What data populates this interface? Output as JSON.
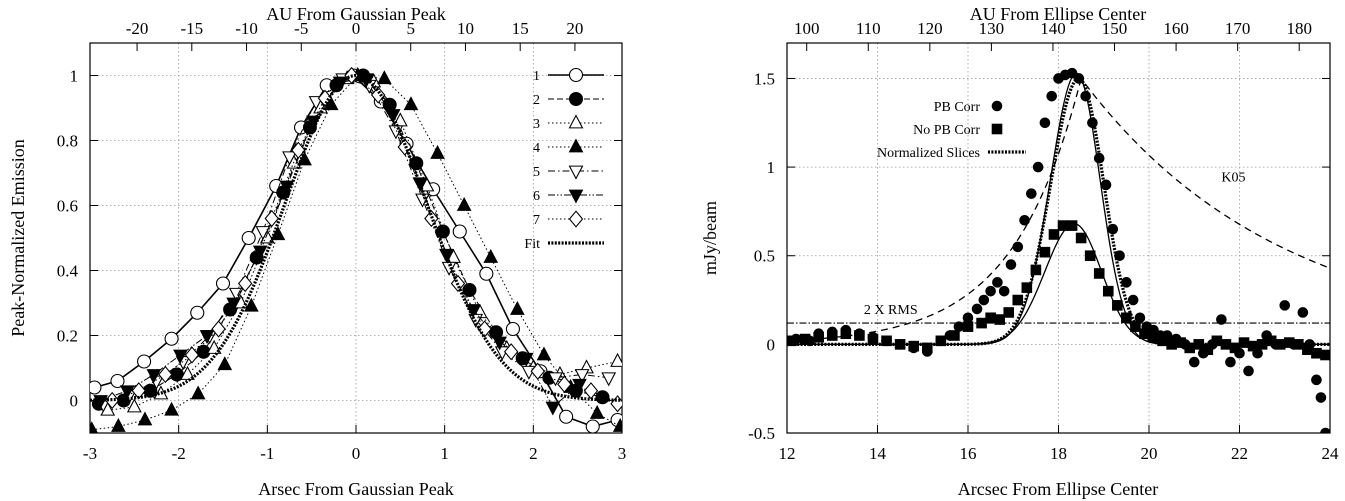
{
  "chart_data": [
    {
      "type": "line",
      "xlabel": "Arsec From Gaussian Peak",
      "ylabel": "Peak-Normalized Emission",
      "x2label": "AU From Gaussian Peak",
      "xlim": [
        -3,
        3
      ],
      "ylim": [
        -0.1,
        1.1
      ],
      "x2lim": [
        -24.3,
        24.3
      ],
      "xticks": [
        -3,
        -2,
        -1,
        0,
        1,
        2,
        3
      ],
      "xtick_labels": [
        "-3",
        "-2",
        "-1",
        "0",
        "1",
        "2",
        "3"
      ],
      "yticks": [
        0,
        0.2,
        0.4,
        0.6,
        0.8,
        1
      ],
      "ytick_labels": [
        "0",
        "0.2",
        "0.4",
        "0.6",
        "0.8",
        "1"
      ],
      "x2ticks": [
        -20,
        -15,
        -10,
        -5,
        0,
        5,
        10,
        15,
        20
      ],
      "x2tick_labels": [
        "-20",
        "-15",
        "-10",
        "-5",
        "0",
        "5",
        "10",
        "15",
        "20"
      ],
      "grid": true,
      "legend_position": "top-right",
      "series": [
        {
          "name": "1",
          "marker": "circle-open",
          "line": "solid",
          "lw": 1.6,
          "x": [
            -2.95,
            -2.69,
            -2.39,
            -2.08,
            -1.79,
            -1.5,
            -1.21,
            -0.9,
            -0.62,
            -0.33,
            -0.03,
            0.28,
            0.57,
            0.87,
            1.17,
            1.47,
            1.77,
            2.08,
            2.37,
            2.67,
            2.95
          ],
          "y": [
            0.04,
            0.06,
            0.12,
            0.19,
            0.27,
            0.36,
            0.5,
            0.66,
            0.84,
            0.97,
            1.0,
            0.92,
            0.79,
            0.65,
            0.52,
            0.39,
            0.22,
            0.09,
            -0.05,
            -0.08,
            -0.06
          ]
        },
        {
          "name": "2",
          "marker": "circle-filled",
          "line": "dashed",
          "lw": 1,
          "x": [
            -2.9,
            -2.62,
            -2.32,
            -2.02,
            -1.72,
            -1.42,
            -1.12,
            -0.82,
            -0.52,
            -0.22,
            0.08,
            0.38,
            0.68,
            0.98,
            1.28,
            1.58,
            1.88,
            2.18,
            2.48,
            2.78
          ],
          "y": [
            -0.01,
            0.0,
            0.03,
            0.08,
            0.15,
            0.28,
            0.44,
            0.64,
            0.84,
            0.97,
            1.0,
            0.91,
            0.73,
            0.52,
            0.34,
            0.21,
            0.13,
            0.07,
            0.03,
            0.01
          ]
        },
        {
          "name": "3",
          "marker": "triangle-up-open",
          "line": "dotted",
          "lw": 1,
          "x": [
            -2.8,
            -2.5,
            -2.2,
            -1.9,
            -1.6,
            -1.3,
            -1.0,
            -0.7,
            -0.4,
            -0.1,
            0.2,
            0.5,
            0.8,
            1.1,
            1.4,
            1.7,
            2.0,
            2.3,
            2.6,
            2.95
          ],
          "y": [
            -0.03,
            -0.02,
            0.02,
            0.08,
            0.16,
            0.3,
            0.5,
            0.73,
            0.9,
            0.99,
            0.98,
            0.86,
            0.66,
            0.44,
            0.27,
            0.16,
            0.1,
            0.08,
            0.1,
            0.12
          ]
        },
        {
          "name": "4",
          "marker": "triangle-up-filled",
          "line": "dotted",
          "lw": 1,
          "x": [
            -2.98,
            -2.68,
            -2.38,
            -2.08,
            -1.78,
            -1.48,
            -1.18,
            -0.88,
            -0.58,
            -0.28,
            0.02,
            0.32,
            0.62,
            0.92,
            1.22,
            1.52,
            1.82,
            2.12,
            2.42,
            2.72,
            2.98
          ],
          "y": [
            -0.09,
            -0.08,
            -0.06,
            -0.03,
            0.02,
            0.11,
            0.29,
            0.51,
            0.74,
            0.91,
            1.0,
            0.99,
            0.91,
            0.76,
            0.6,
            0.44,
            0.28,
            0.14,
            0.04,
            -0.04,
            -0.08
          ]
        },
        {
          "name": "5",
          "marker": "triangle-down-open",
          "line": "dashdot",
          "lw": 1,
          "x": [
            -2.85,
            -2.55,
            -2.25,
            -1.95,
            -1.65,
            -1.35,
            -1.05,
            -0.75,
            -0.45,
            -0.15,
            0.15,
            0.45,
            0.75,
            1.05,
            1.35,
            1.65,
            1.95,
            2.25,
            2.55,
            2.85
          ],
          "y": [
            -0.01,
            0.02,
            0.06,
            0.12,
            0.2,
            0.33,
            0.52,
            0.75,
            0.92,
            0.99,
            0.97,
            0.83,
            0.62,
            0.41,
            0.25,
            0.15,
            0.09,
            0.07,
            0.08,
            0.07
          ]
        },
        {
          "name": "6",
          "marker": "triangle-down-filled",
          "line": "dashdotdot",
          "lw": 1,
          "x": [
            -2.88,
            -2.58,
            -2.28,
            -1.98,
            -1.68,
            -1.38,
            -1.08,
            -0.78,
            -0.48,
            -0.18,
            0.12,
            0.42,
            0.72,
            1.02,
            1.32,
            1.62,
            1.92,
            2.22,
            2.52
          ],
          "y": [
            0.0,
            0.03,
            0.08,
            0.14,
            0.2,
            0.3,
            0.46,
            0.66,
            0.86,
            0.98,
            0.99,
            0.88,
            0.67,
            0.45,
            0.28,
            0.18,
            0.13,
            -0.02,
            0.05
          ]
        },
        {
          "name": "7",
          "marker": "diamond-open",
          "line": "dotted",
          "lw": 1,
          "x": [
            -2.75,
            -2.45,
            -2.15,
            -1.85,
            -1.55,
            -1.25,
            -0.95,
            -0.65,
            -0.35,
            -0.05,
            0.25,
            0.55,
            0.85,
            1.15,
            1.45,
            1.75,
            2.05,
            2.35,
            2.65,
            2.95
          ],
          "y": [
            0.0,
            0.03,
            0.08,
            0.14,
            0.22,
            0.36,
            0.56,
            0.77,
            0.93,
            1.0,
            0.94,
            0.78,
            0.56,
            0.36,
            0.22,
            0.15,
            0.09,
            0.05,
            0.03,
            -0.01
          ]
        },
        {
          "name": "Fit",
          "marker": "none",
          "line": "fit",
          "lw": 3.2,
          "fit": {
            "sigma": 0.8
          },
          "x_range": [
            -3,
            3
          ]
        }
      ]
    },
    {
      "type": "scatter",
      "xlabel": "Arcsec From Ellipse Center",
      "ylabel": "mJy/beam",
      "x2label": "AU From Ellipse Center",
      "xlim": [
        12,
        24
      ],
      "ylim": [
        -0.5,
        1.7
      ],
      "x2lim": [
        96.8,
        185
      ],
      "xticks": [
        12,
        14,
        16,
        18,
        20,
        22,
        24
      ],
      "xtick_labels": [
        "12",
        "14",
        "16",
        "18",
        "20",
        "22",
        "24"
      ],
      "yticks": [
        -0.5,
        0,
        0.5,
        1,
        1.5
      ],
      "ytick_labels": [
        "-0.5",
        "0",
        "0.5",
        "1",
        "1.5"
      ],
      "x2ticks": [
        100,
        110,
        120,
        130,
        140,
        150,
        160,
        170,
        180
      ],
      "x2tick_labels": [
        "100",
        "110",
        "120",
        "130",
        "140",
        "150",
        "160",
        "170",
        "180"
      ],
      "grid": true,
      "legend_position": "top-left",
      "annotations": [
        {
          "text": "K05",
          "x": 21.6,
          "y": 0.92
        },
        {
          "text": "2 X RMS",
          "x": 13.7,
          "y": 0.17
        }
      ],
      "reference_lines": [
        {
          "name": "2 X RMS",
          "y": 0.12
        }
      ],
      "series": [
        {
          "name": "PB Corr",
          "marker": "circle-filled",
          "x": [
            12.2,
            12.5,
            12.7,
            13.0,
            13.3,
            13.6,
            13.9,
            14.2,
            14.5,
            14.8,
            15.1,
            15.4,
            15.6,
            15.8,
            16.0,
            16.2,
            16.35,
            16.5,
            16.65,
            16.8,
            16.95,
            17.1,
            17.25,
            17.4,
            17.55,
            17.7,
            17.85,
            18.0,
            18.15,
            18.3,
            18.45,
            18.6,
            18.75,
            18.9,
            19.05,
            19.2,
            19.35,
            19.5,
            19.65,
            19.8,
            19.95,
            20.1,
            20.25,
            20.4,
            20.6,
            20.8,
            21.0,
            21.2,
            21.4,
            21.6,
            21.8,
            22.0,
            22.2,
            22.4,
            22.6,
            22.8,
            23.0,
            23.2,
            23.4,
            23.55,
            23.7,
            23.8,
            23.9
          ],
          "y": [
            0.03,
            0.02,
            0.06,
            0.07,
            0.08,
            0.06,
            0.04,
            0.02,
            0.0,
            -0.02,
            -0.04,
            0.02,
            0.05,
            0.1,
            0.15,
            0.2,
            0.25,
            0.3,
            0.35,
            0.3,
            0.45,
            0.55,
            0.7,
            0.85,
            1.0,
            1.25,
            1.4,
            1.5,
            1.52,
            1.53,
            1.5,
            1.4,
            1.25,
            1.05,
            0.9,
            0.65,
            0.5,
            0.35,
            0.25,
            0.15,
            0.1,
            0.08,
            0.05,
            0.05,
            0.03,
            0.0,
            -0.1,
            -0.05,
            0.0,
            0.14,
            -0.1,
            -0.05,
            -0.15,
            -0.05,
            0.05,
            0.0,
            0.22,
            0.0,
            0.18,
            0.0,
            -0.2,
            -0.3,
            -0.5
          ]
        },
        {
          "name": "No PB Corr",
          "marker": "square-filled",
          "x": [
            12.1,
            12.4,
            12.7,
            13.0,
            13.3,
            13.6,
            13.9,
            14.2,
            14.5,
            14.8,
            15.1,
            15.4,
            15.7,
            16.0,
            16.3,
            16.5,
            16.7,
            16.9,
            17.1,
            17.3,
            17.5,
            17.7,
            17.9,
            18.1,
            18.3,
            18.5,
            18.7,
            18.9,
            19.1,
            19.3,
            19.5,
            19.7,
            19.9,
            20.1,
            20.3,
            20.5,
            20.7,
            20.9,
            21.1,
            21.3,
            21.5,
            21.7,
            21.9,
            22.1,
            22.3,
            22.5,
            22.7,
            22.9,
            23.1,
            23.3,
            23.5,
            23.7,
            23.9
          ],
          "y": [
            0.02,
            0.03,
            0.04,
            0.05,
            0.06,
            0.05,
            0.03,
            0.02,
            0.0,
            -0.01,
            -0.02,
            0.02,
            0.05,
            0.1,
            0.12,
            0.15,
            0.14,
            0.18,
            0.25,
            0.32,
            0.42,
            0.52,
            0.62,
            0.67,
            0.67,
            0.6,
            0.5,
            0.4,
            0.3,
            0.22,
            0.15,
            0.1,
            0.06,
            0.04,
            0.02,
            0.0,
            0.01,
            -0.02,
            0.0,
            -0.03,
            0.02,
            0.0,
            -0.02,
            0.01,
            -0.01,
            0.0,
            0.02,
            0.0,
            0.01,
            0.0,
            -0.03,
            -0.05,
            -0.06
          ]
        },
        {
          "name": "Normalized Slices",
          "marker": "none",
          "line": "fit",
          "lw": 3.2,
          "fit": {
            "center": 18.45,
            "amp": 1.5,
            "sigma_left": 0.62,
            "sigma_right": 0.55
          },
          "x_range": [
            12,
            24
          ]
        }
      ],
      "model_curves": [
        {
          "name": "solid-model-pb",
          "style": "solid",
          "fit": {
            "center": 18.4,
            "amp": 1.53,
            "sigma_left": 0.58,
            "sigma_right": 0.52
          }
        },
        {
          "name": "solid-model-nopb",
          "style": "solid",
          "fit": {
            "center": 18.35,
            "amp": 0.68,
            "sigma_left": 0.65,
            "sigma_right": 0.6
          }
        },
        {
          "name": "K05",
          "style": "dashed",
          "fit": {
            "center": 18.5,
            "amp": 1.5,
            "lambda_left": 1.5,
            "lambda_right": 4.4
          },
          "x_range": [
            12.5,
            24
          ]
        }
      ]
    }
  ]
}
